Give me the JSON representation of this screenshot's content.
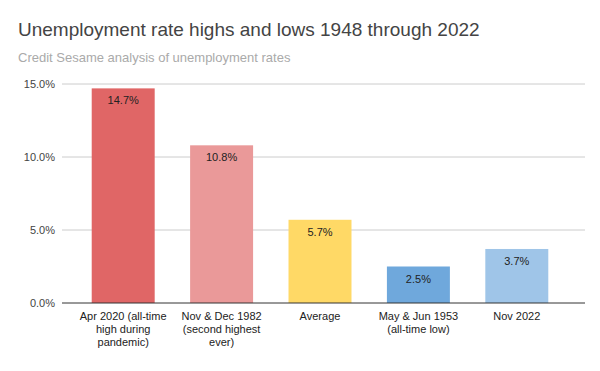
{
  "chart_data": {
    "type": "bar",
    "title": "Unemployment rate highs and lows 1948 through 2022",
    "subtitle": "Credit Sesame analysis of unemployment rates",
    "categories": [
      "Apr 2020 (all-time high during pandemic)",
      "Nov & Dec 1982 (second highest ever)",
      "Average",
      "May & Jun 1953 (all-time low)",
      "Nov 2022"
    ],
    "values": [
      14.7,
      10.8,
      5.7,
      2.5,
      3.7
    ],
    "value_labels": [
      "14.7%",
      "10.8%",
      "5.7%",
      "2.5%",
      "3.7%"
    ],
    "colors": [
      "#e06666",
      "#ea9999",
      "#ffd966",
      "#6fa8dc",
      "#9fc5e8"
    ],
    "ylim": [
      0,
      15
    ],
    "yticks": [
      {
        "value": 0,
        "label": "0.0%"
      },
      {
        "value": 5,
        "label": "5.0%"
      },
      {
        "value": 10,
        "label": "10.0%"
      },
      {
        "value": 15,
        "label": "15.0%"
      }
    ],
    "grid": true,
    "data_labels": true
  }
}
